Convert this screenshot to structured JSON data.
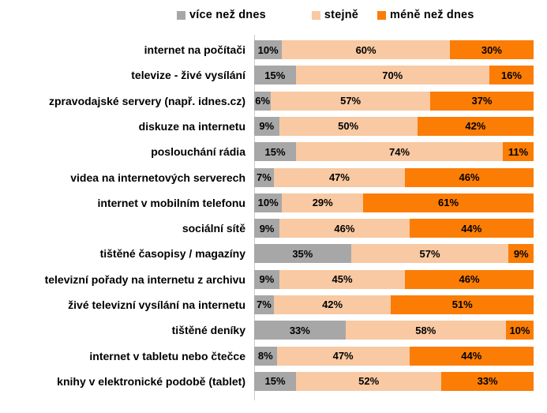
{
  "chart_data": {
    "type": "bar",
    "orientation": "horizontal-stacked",
    "title": "",
    "xlabel": "",
    "ylabel": "",
    "legend_position": "top",
    "grid": false,
    "axis_line_color": "#c9c9c9",
    "value_suffix": "%",
    "categories": [
      "internet na počítači",
      "televize - živé vysílání",
      "zpravodajské servery (např. idnes.cz)",
      "diskuze na internetu",
      "poslouchání rádia",
      "videa na internetových serverech",
      "internet v mobilním telefonu",
      "sociální sítě",
      "tištěné časopisy / magazíny",
      "televizní pořady na internetu z archivu",
      "živé televizní vysílání na internetu",
      "tištěné deníky",
      "internet v tabletu nebo čtečce",
      "knihy v elektronické podobě (tablet)"
    ],
    "series": [
      {
        "name": "více než dnes",
        "color": "#a7a7a7",
        "values": [
          10,
          15,
          6,
          9,
          15,
          7,
          10,
          9,
          35,
          9,
          7,
          33,
          8,
          15
        ]
      },
      {
        "name": "stejně",
        "color": "#f8c9a2",
        "values": [
          60,
          70,
          57,
          50,
          74,
          47,
          29,
          46,
          57,
          45,
          42,
          58,
          47,
          52
        ]
      },
      {
        "name": "méně než dnes",
        "color": "#fb7d05",
        "values": [
          30,
          16,
          37,
          42,
          11,
          46,
          61,
          44,
          9,
          46,
          51,
          10,
          44,
          33
        ]
      }
    ]
  }
}
